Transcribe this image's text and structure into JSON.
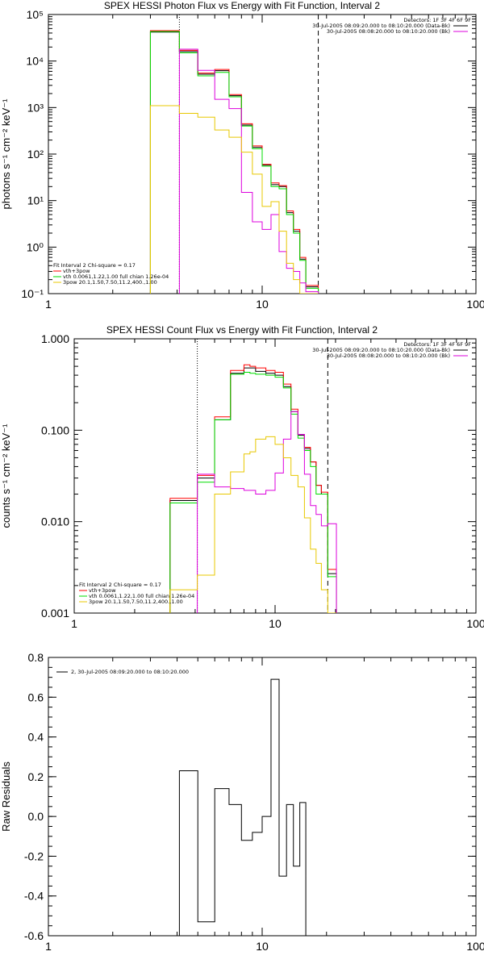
{
  "colors": {
    "black": "#000000",
    "red": "#ff0000",
    "green": "#00dd00",
    "magenta": "#dd00dd",
    "yellow": "#e8c800"
  },
  "chart_data": [
    {
      "type": "line",
      "title": "SPEX HESSI Photon Flux vs Energy with Fit Function, Interval 2",
      "xlabel": "",
      "ylabel": "photons s⁻¹ cm⁻² keV⁻¹",
      "xscale": "log",
      "yscale": "log",
      "xlim": [
        1,
        100
      ],
      "ylim": [
        0.1,
        100000
      ],
      "xticks": [
        1,
        10,
        100
      ],
      "xtick_labels": [
        "1",
        "10",
        "100"
      ],
      "yticks": [
        0.1,
        1,
        10,
        100,
        1000,
        10000,
        100000
      ],
      "ytick_labels": [
        "10⁻¹",
        "10⁰",
        "10¹",
        "10²",
        "10³",
        "10⁴",
        "10⁵"
      ],
      "vlines": [
        {
          "x": 4.1,
          "style": "dotted"
        },
        {
          "x": 18.3,
          "style": "dashed"
        }
      ],
      "info_top": [
        "Detectors: 1F 3F 4F 6F 9F",
        "30-Jul-2005 08:09:20.000 to 08:10:20.000 (Data-Bk)",
        "30-Jul-2005 08:08:20.000 to 08:10:20.000 (Bk)"
      ],
      "legend": [
        "Fit Interval 2   Chi-square = 0.17",
        "vth+3pow",
        "vth 0.0061,1.22,1.00  full chian 1.26e-04",
        "3pow 20.1,1.50,7.50,11.2,400.,1.00"
      ],
      "bin_edges": [
        3.0,
        4.1,
        5.0,
        6.0,
        7.0,
        8.0,
        9.0,
        10.0,
        11.0,
        12.0,
        13.0,
        14.0,
        15.0,
        16.0,
        18.3
      ],
      "series": [
        {
          "color_key": "black",
          "style": "step",
          "values": [
            42000,
            16000,
            5200,
            6200,
            1800,
            420,
            140,
            58,
            22,
            20,
            5.5,
            2.2,
            0.55,
            0.14
          ]
        },
        {
          "color_key": "red",
          "style": "step",
          "values": [
            45000,
            17000,
            5500,
            6600,
            1900,
            450,
            150,
            60,
            24,
            21,
            6,
            2.4,
            0.6,
            0.15
          ]
        },
        {
          "color_key": "green",
          "style": "step",
          "values": [
            43000,
            15000,
            4800,
            5700,
            1700,
            400,
            130,
            55,
            20,
            18,
            5,
            2,
            0.52,
            0.13
          ]
        },
        {
          "color_key": "magenta",
          "style": "step",
          "values": [
            null,
            18000,
            6300,
            1500,
            950,
            15,
            3.5,
            2.4,
            5,
            0.8,
            0.35,
            0.3,
            0.17,
            0.11
          ]
        },
        {
          "color_key": "yellow",
          "style": "step",
          "values": [
            1100,
            750,
            620,
            330,
            230,
            110,
            37,
            7.5,
            9.5,
            2.2,
            0.45,
            0.2,
            0.1,
            0.1
          ]
        }
      ]
    },
    {
      "type": "line",
      "title": "SPEX HESSI Count Flux vs Energy with Fit Function, Interval 2",
      "xlabel": "",
      "ylabel": "counts s⁻¹ cm⁻² keV⁻¹",
      "xscale": "log",
      "yscale": "log",
      "xlim": [
        1,
        100
      ],
      "ylim": [
        0.001,
        1.0
      ],
      "xticks": [
        1,
        10,
        100
      ],
      "xtick_labels": [
        "1",
        "10",
        "100"
      ],
      "yticks": [
        0.001,
        0.01,
        0.1,
        1.0
      ],
      "ytick_labels": [
        "0.001",
        "0.010",
        "0.100",
        "1.000"
      ],
      "vlines": [
        {
          "x": 4.1,
          "style": "dotted"
        },
        {
          "x": 18.3,
          "style": "dashed"
        }
      ],
      "info_top": [
        "Detectors: 1F 3F 4F 6F 9F",
        "30-Jul-2005 08:09:20.000 to 08:10:20.000 (Data-Bk)",
        "30-Jul-2005 08:08:20.000 to 08:10:20.000 (Bk)"
      ],
      "legend": [
        "Fit Interval 2   Chi-square = 0.17",
        "vth+3pow",
        "vth 0.0061,1.22,1.00  full chian 1.26e-04",
        "3pow 20.1,1.50,7.50,11.2,400.,1.00"
      ],
      "bin_edges": [
        3.0,
        4.1,
        5.0,
        6.0,
        7.0,
        7.5,
        8.0,
        9.0,
        10.0,
        11.0,
        12.0,
        13.0,
        14.0,
        15.0,
        16.0,
        17.0,
        18.3,
        20.2
      ],
      "series": [
        {
          "color_key": "black",
          "style": "step",
          "values": [
            0.017,
            0.03,
            0.13,
            0.42,
            0.48,
            0.48,
            0.44,
            0.42,
            0.4,
            0.3,
            0.16,
            0.088,
            0.063,
            0.045,
            0.025,
            0.02,
            0.0027
          ]
        },
        {
          "color_key": "red",
          "style": "step",
          "values": [
            0.018,
            0.032,
            0.14,
            0.45,
            0.52,
            0.5,
            0.48,
            0.45,
            0.43,
            0.32,
            0.17,
            0.09,
            0.065,
            0.045,
            0.025,
            0.021,
            0.003
          ]
        },
        {
          "color_key": "green",
          "style": "step",
          "values": [
            0.016,
            0.027,
            0.13,
            0.41,
            0.43,
            0.42,
            0.41,
            0.4,
            0.38,
            0.29,
            0.15,
            0.082,
            0.06,
            0.04,
            0.02,
            0.02,
            0.0025
          ]
        },
        {
          "color_key": "magenta",
          "style": "step",
          "values": [
            null,
            0.033,
            0.024,
            0.023,
            0.022,
            0.022,
            0.02,
            0.022,
            0.034,
            0.08,
            0.16,
            0.09,
            0.033,
            0.015,
            0.012,
            0.009,
            0.0095
          ]
        },
        {
          "color_key": "yellow",
          "style": "step",
          "values": [
            0.0018,
            0.0026,
            0.02,
            0.035,
            0.055,
            0.058,
            0.08,
            0.085,
            0.07,
            0.05,
            0.032,
            0.024,
            0.011,
            0.005,
            0.0035,
            0.0018,
            0.001
          ]
        }
      ]
    },
    {
      "type": "line",
      "title": "",
      "xlabel": "",
      "ylabel": "Raw Residuals",
      "xscale": "log",
      "yscale": "linear",
      "xlim": [
        1,
        100
      ],
      "ylim": [
        -0.6,
        0.8
      ],
      "xticks": [
        1,
        10,
        100
      ],
      "xtick_labels": [
        "1",
        "10",
        "100"
      ],
      "yticks": [
        -0.6,
        -0.4,
        -0.2,
        0.0,
        0.2,
        0.4,
        0.6,
        0.8
      ],
      "ytick_labels": [
        "-0.6",
        "-0.4",
        "-0.2",
        "0.0",
        "0.2",
        "0.4",
        "0.6",
        "0.8"
      ],
      "legend": [
        "2, 30-Jul-2005 08:09:20.000 to 08:10:20.000"
      ],
      "bin_edges": [
        4.1,
        5.0,
        6.0,
        7.0,
        8.0,
        9.0,
        10.0,
        11.0,
        12.0,
        13.0,
        14.0,
        15.0,
        16.0,
        18.3
      ],
      "series": [
        {
          "color_key": "black",
          "style": "step",
          "values": [
            0.23,
            -0.53,
            0.14,
            0.06,
            -0.12,
            -0.08,
            0.0,
            0.69,
            -0.3,
            0.06,
            -0.25,
            0.07,
            -0.6
          ]
        }
      ]
    }
  ]
}
